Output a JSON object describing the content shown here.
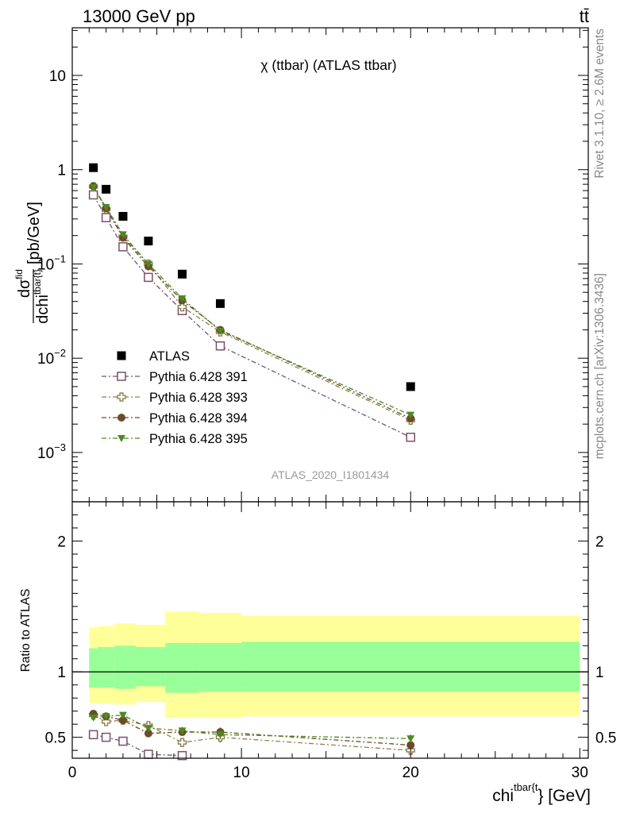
{
  "header": {
    "left": "13000 GeV pp",
    "right": "tt̄"
  },
  "side_labels": {
    "rivet": "Rivet 3.1.10, ≥ 2.6M events",
    "mcplots": "mcplots.cern.ch [arXiv:1306.3436]"
  },
  "analysis_ref": "ATLAS_2020_I1801434",
  "chart_data": [
    {
      "type": "scatter",
      "panel": "main",
      "title": "χ (ttbar) (ATLAS ttbar)",
      "ylabel": "dσ^fid / dchi^tbar{t} [pb/GeV]",
      "ylabel_parts": {
        "num_base": "dσ",
        "num_sup": "fid",
        "den_base": "dchi",
        "den_sup": "tbar{t}",
        "unit": "[pb/GeV]"
      },
      "xlim": [
        0,
        30.5
      ],
      "ylim": [
        0.0003,
        32
      ],
      "yscale": "log",
      "ytick_labels": [
        {
          "value": 0.001,
          "base": "10",
          "exp": "−3"
        },
        {
          "value": 0.01,
          "base": "10",
          "exp": "−2"
        },
        {
          "value": 0.1,
          "base": "10",
          "exp": "−1"
        },
        {
          "value": 1,
          "base": "1",
          "exp": ""
        },
        {
          "value": 10,
          "base": "10",
          "exp": ""
        }
      ],
      "legend_position": "bottom-left",
      "series": [
        {
          "name": "ATLAS",
          "style": "data",
          "color": "#000000",
          "marker": "square-filled",
          "x": [
            1.25,
            2.0,
            3.0,
            4.5,
            6.5,
            8.75,
            20.0
          ],
          "y": [
            1.05,
            0.62,
            0.32,
            0.175,
            0.078,
            0.038,
            0.005
          ]
        },
        {
          "name": "Pythia 6.428 391",
          "color": "#7a4f68",
          "marker": "square-open",
          "x": [
            1.25,
            2.0,
            3.0,
            4.5,
            6.5,
            8.75,
            20.0
          ],
          "y": [
            0.54,
            0.31,
            0.152,
            0.072,
            0.032,
            0.0135,
            0.00145
          ]
        },
        {
          "name": "Pythia 6.428 393",
          "color": "#8c8050",
          "marker": "cross-open",
          "x": [
            1.25,
            2.0,
            3.0,
            4.5,
            6.5,
            8.75,
            20.0
          ],
          "y": [
            0.66,
            0.38,
            0.195,
            0.1,
            0.035,
            0.019,
            0.0022
          ]
        },
        {
          "name": "Pythia 6.428 394",
          "color": "#6b4c2a",
          "marker": "circle-filled",
          "x": [
            1.25,
            2.0,
            3.0,
            4.5,
            6.5,
            8.75,
            20.0
          ],
          "y": [
            0.67,
            0.39,
            0.19,
            0.094,
            0.041,
            0.02,
            0.0023
          ]
        },
        {
          "name": "Pythia 6.428 395",
          "color": "#4b8a1e",
          "marker": "triangle-down-filled",
          "x": [
            1.25,
            2.0,
            3.0,
            4.5,
            6.5,
            8.75,
            20.0
          ],
          "y": [
            0.65,
            0.4,
            0.205,
            0.1,
            0.043,
            0.0195,
            0.0025
          ]
        }
      ]
    },
    {
      "type": "scatter",
      "panel": "ratio",
      "ylabel": "Ratio to ATLAS",
      "xlabel": "chi^tbar{t} [GeV]",
      "xlabel_parts": {
        "base": "chi",
        "sup": "tbar{t",
        "rest": "} [GeV]"
      },
      "xlim": [
        0,
        30.5
      ],
      "ylim": [
        0.34,
        2.3
      ],
      "xticks": [
        0,
        10,
        20,
        30
      ],
      "xtick_labels": [
        "0",
        "10",
        "20",
        "30"
      ],
      "yticks": [
        0.5,
        1,
        2
      ],
      "ytick_labels": [
        "0.5",
        "1",
        "2"
      ],
      "reference_line": 1,
      "bands": [
        {
          "name": "total uncertainty",
          "color": "#ffff99",
          "bins": [
            {
              "x": [
                1.0,
                1.5
              ],
              "lo": 0.76,
              "hi": 1.34
            },
            {
              "x": [
                1.5,
                2.5
              ],
              "lo": 0.76,
              "hi": 1.35
            },
            {
              "x": [
                2.5,
                3.75
              ],
              "lo": 0.75,
              "hi": 1.37
            },
            {
              "x": [
                3.75,
                5.5
              ],
              "lo": 0.77,
              "hi": 1.36
            },
            {
              "x": [
                5.5,
                7.5
              ],
              "lo": 0.65,
              "hi": 1.46
            },
            {
              "x": [
                7.5,
                10.0
              ],
              "lo": 0.65,
              "hi": 1.45
            },
            {
              "x": [
                10.0,
                30.0
              ],
              "lo": 0.66,
              "hi": 1.43
            }
          ]
        },
        {
          "name": "stat uncertainty",
          "color": "#99ff99",
          "bins": [
            {
              "x": [
                1.0,
                1.5
              ],
              "lo": 0.88,
              "hi": 1.18
            },
            {
              "x": [
                1.5,
                2.5
              ],
              "lo": 0.88,
              "hi": 1.19
            },
            {
              "x": [
                2.5,
                3.75
              ],
              "lo": 0.87,
              "hi": 1.2
            },
            {
              "x": [
                3.75,
                5.5
              ],
              "lo": 0.89,
              "hi": 1.19
            },
            {
              "x": [
                5.5,
                7.5
              ],
              "lo": 0.84,
              "hi": 1.22
            },
            {
              "x": [
                7.5,
                10.0
              ],
              "lo": 0.85,
              "hi": 1.22
            },
            {
              "x": [
                10.0,
                30.0
              ],
              "lo": 0.85,
              "hi": 1.23
            }
          ]
        }
      ],
      "series": [
        {
          "name": "Pythia 6.428 391",
          "color": "#7a4f68",
          "marker": "square-open",
          "x": [
            1.25,
            2.0,
            3.0,
            4.5,
            6.5
          ],
          "y": [
            0.52,
            0.5,
            0.47,
            0.37,
            0.36
          ],
          "err": [
            0.01,
            0.01,
            0.01,
            0.015,
            0.02
          ]
        },
        {
          "name": "Pythia 6.428 393",
          "color": "#8c8050",
          "marker": "cross-open",
          "x": [
            1.25,
            2.0,
            3.0,
            4.5,
            6.5,
            8.75,
            20.0
          ],
          "y": [
            0.67,
            0.62,
            0.63,
            0.59,
            0.46,
            0.5,
            0.4
          ],
          "err": [
            0.02,
            0.02,
            0.02,
            0.02,
            0.035,
            0.04,
            0.02
          ]
        },
        {
          "name": "Pythia 6.428 394",
          "color": "#6b4c2a",
          "marker": "circle-filled",
          "x": [
            1.25,
            2.0,
            3.0,
            4.5,
            6.5,
            8.75,
            20.0
          ],
          "y": [
            0.68,
            0.66,
            0.63,
            0.53,
            0.54,
            0.54,
            0.44
          ],
          "err": [
            0.02,
            0.02,
            0.02,
            0.025,
            0.03,
            0.035,
            0.03
          ]
        },
        {
          "name": "Pythia 6.428 395",
          "color": "#4b8a1e",
          "marker": "triangle-down-filled",
          "x": [
            1.25,
            2.0,
            3.0,
            4.5,
            6.5,
            8.75,
            20.0
          ],
          "y": [
            0.65,
            0.66,
            0.67,
            0.57,
            0.55,
            0.52,
            0.49
          ],
          "err": [
            0.02,
            0.02,
            0.02,
            0.025,
            0.03,
            0.035,
            0.03
          ]
        }
      ]
    }
  ]
}
